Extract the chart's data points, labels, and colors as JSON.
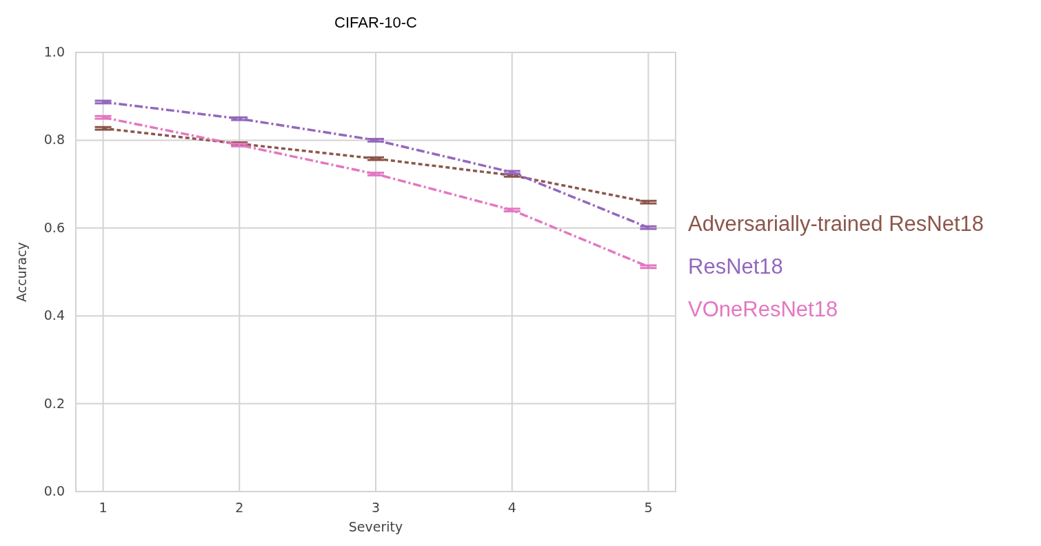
{
  "chart_data": {
    "type": "line",
    "title": "CIFAR-10-C",
    "xlabel": "Severity",
    "ylabel": "Accuracy",
    "x": [
      1,
      2,
      3,
      4,
      5
    ],
    "series": [
      {
        "name": "Adversarially-trained ResNet18",
        "color": "#8c564b",
        "values": [
          0.827,
          0.792,
          0.758,
          0.72,
          0.659
        ],
        "errors": [
          0.003,
          0.003,
          0.003,
          0.003,
          0.003
        ],
        "line_style": "dotted"
      },
      {
        "name": "ResNet18",
        "color": "#9467bd",
        "values": [
          0.887,
          0.849,
          0.8,
          0.727,
          0.601
        ],
        "errors": [
          0.003,
          0.003,
          0.003,
          0.003,
          0.003
        ],
        "line_style": "dashed"
      },
      {
        "name": "VOneResNet18",
        "color": "#e377c2",
        "values": [
          0.852,
          0.789,
          0.723,
          0.641,
          0.512
        ],
        "errors": [
          0.003,
          0.003,
          0.003,
          0.003,
          0.003
        ],
        "line_style": "dashed"
      }
    ],
    "xlim": [
      0.8,
      5.2
    ],
    "xticks": [
      1,
      2,
      3,
      4,
      5
    ],
    "ylim": [
      0,
      1
    ],
    "yticks": [
      {
        "value": 0,
        "label": "0.0"
      },
      {
        "value": 0.2,
        "label": "0.2"
      },
      {
        "value": 0.4,
        "label": "0.4"
      },
      {
        "value": 0.6,
        "label": "0.6"
      },
      {
        "value": 0.8,
        "label": "0.8"
      },
      {
        "value": 1,
        "label": "1.0"
      }
    ],
    "grid": true,
    "legend": "right",
    "marker": "none"
  }
}
